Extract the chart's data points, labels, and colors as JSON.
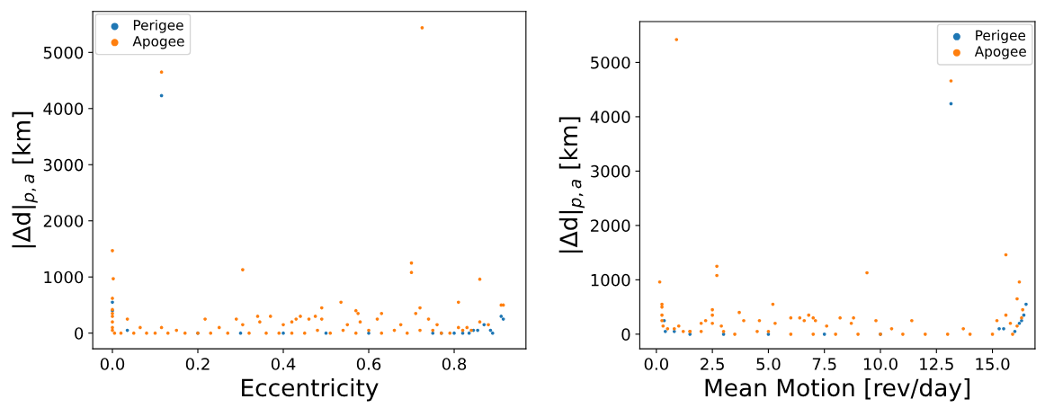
{
  "chart_data": [
    {
      "type": "scatter",
      "xlabel": "Eccentricity",
      "ylabel": "|Δd|$_{p,a}$ [km]",
      "xlim": [
        -0.046,
        0.968
      ],
      "ylim": [
        -280,
        5730
      ],
      "xticks": [
        {
          "value": 0,
          "label": "0.0"
        },
        0.2,
        0.4,
        0.6,
        0.8
      ],
      "yticks": [
        0,
        1000,
        2000,
        3000,
        4000,
        5000
      ],
      "legend": "top left",
      "grid": false,
      "marker": "circle",
      "series": [
        {
          "name": "Perigee",
          "color": "#1f77b4",
          "x": [
            0.0,
            0.0,
            0.035,
            0.115,
            0.2,
            0.3,
            0.4,
            0.5,
            0.6,
            0.75,
            0.77,
            0.8,
            0.82,
            0.835,
            0.845,
            0.855,
            0.87,
            0.885,
            0.89,
            0.91,
            0.915
          ],
          "values": [
            550,
            400,
            50,
            4230,
            0,
            0,
            0,
            0,
            0,
            0,
            0,
            0,
            0,
            0,
            50,
            50,
            150,
            50,
            0,
            300,
            250
          ]
        },
        {
          "name": "Apogee",
          "color": "#ff7f0e",
          "x": [
            0.0,
            0.002,
            0.0,
            0.0,
            0.0,
            0.0,
            0.0,
            0.0,
            0.0,
            0.005,
            0.035,
            0.065,
            0.115,
            0.115,
            0.15,
            0.217,
            0.25,
            0.29,
            0.305,
            0.305,
            0.34,
            0.345,
            0.37,
            0.4,
            0.42,
            0.43,
            0.44,
            0.46,
            0.475,
            0.49,
            0.49,
            0.535,
            0.55,
            0.57,
            0.575,
            0.58,
            0.62,
            0.63,
            0.675,
            0.7,
            0.7,
            0.71,
            0.72,
            0.725,
            0.74,
            0.76,
            0.81,
            0.81,
            0.83,
            0.86,
            0.86,
            0.88,
            0.91,
            0.915,
            0.02,
            0.05,
            0.08,
            0.1,
            0.13,
            0.17,
            0.2,
            0.23,
            0.27,
            0.32,
            0.36,
            0.39,
            0.42,
            0.45,
            0.48,
            0.51,
            0.54,
            0.57,
            0.6,
            0.63,
            0.66,
            0.69,
            0.72,
            0.75,
            0.77,
            0.79,
            0.82,
            0.84
          ],
          "values": [
            1470,
            970,
            620,
            420,
            350,
            300,
            200,
            100,
            50,
            0,
            250,
            100,
            4650,
            100,
            50,
            250,
            100,
            250,
            1130,
            150,
            300,
            200,
            300,
            150,
            200,
            250,
            300,
            250,
            300,
            450,
            250,
            550,
            150,
            400,
            350,
            200,
            250,
            350,
            150,
            1250,
            1080,
            350,
            450,
            5440,
            250,
            150,
            550,
            100,
            100,
            960,
            200,
            150,
            500,
            500,
            0,
            0,
            0,
            0,
            0,
            0,
            0,
            0,
            0,
            0,
            0,
            0,
            0,
            0,
            50,
            0,
            50,
            0,
            50,
            0,
            50,
            0,
            50,
            50,
            0,
            0,
            50,
            50
          ]
        }
      ]
    },
    {
      "type": "scatter",
      "xlabel": "Mean Motion [rev/day]",
      "ylabel": "|Δd|$_{p,a}$ [km]",
      "xlim": [
        -0.74,
        16.9
      ],
      "ylim": [
        -270,
        5750
      ],
      "xticks": [
        {
          "value": 0,
          "label": "0.0"
        },
        2.5,
        {
          "value": 5,
          "label": "5.0"
        },
        7.5,
        {
          "value": 10,
          "label": "10.0"
        },
        12.5,
        {
          "value": 15,
          "label": "15.0"
        }
      ],
      "yticks": [
        0,
        1000,
        2000,
        3000,
        4000,
        5000
      ],
      "legend": "top right",
      "grid": false,
      "marker": "circle",
      "series": [
        {
          "name": "Perigee",
          "color": "#1f77b4",
          "x": [
            0.35,
            0.4,
            0.8,
            1.5,
            3,
            5,
            7.5,
            10,
            13.15,
            15.3,
            15.5,
            16.0,
            16.2,
            16.3,
            16.4,
            16.5
          ],
          "values": [
            250,
            50,
            50,
            0,
            0,
            0,
            0,
            0,
            4240,
            100,
            100,
            50,
            200,
            250,
            350,
            550
          ]
        },
        {
          "name": "Apogee",
          "color": "#ff7f0e",
          "x": [
            0.15,
            0.25,
            0.25,
            0.25,
            0.25,
            0.3,
            0.5,
            0.8,
            0.9,
            1.0,
            1.2,
            1.5,
            2.0,
            2.2,
            2.5,
            2.5,
            2.5,
            2.7,
            2.7,
            2.9,
            3.7,
            3.9,
            4.6,
            5.2,
            5.3,
            6.0,
            6.4,
            6.6,
            6.8,
            7.0,
            7.1,
            7.6,
            8.2,
            8.7,
            8.8,
            9.4,
            9.8,
            10.5,
            11.4,
            13.15,
            13.7,
            15.2,
            15.6,
            15.6,
            15.8,
            16.1,
            16.2,
            16.35,
            16.3,
            16.1,
            1.5,
            2,
            3,
            3.5,
            4.5,
            5,
            6,
            7,
            8,
            9,
            10,
            11,
            12,
            13,
            14,
            15,
            15.9
          ],
          "values": [
            960,
            550,
            500,
            350,
            250,
            150,
            100,
            100,
            5420,
            150,
            50,
            50,
            200,
            250,
            450,
            350,
            200,
            1250,
            1080,
            150,
            400,
            250,
            250,
            550,
            200,
            300,
            300,
            250,
            350,
            300,
            250,
            150,
            300,
            200,
            300,
            1130,
            250,
            100,
            250,
            4660,
            100,
            250,
            1460,
            350,
            200,
            650,
            960,
            450,
            300,
            150,
            50,
            50,
            50,
            0,
            50,
            50,
            0,
            0,
            0,
            0,
            0,
            0,
            0,
            0,
            0,
            0,
            0
          ]
        }
      ]
    }
  ]
}
